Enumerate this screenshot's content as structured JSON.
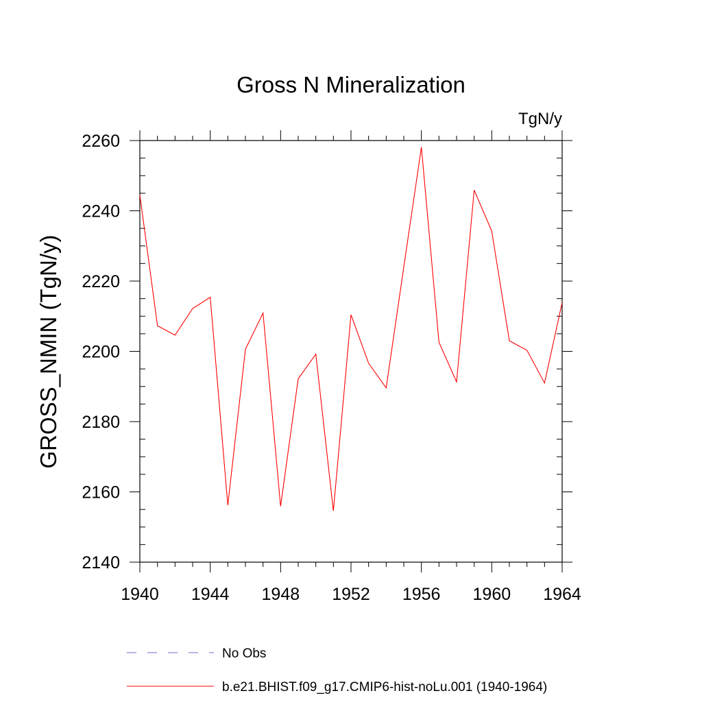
{
  "chart_data": {
    "type": "line",
    "title": "Gross N Mineralization",
    "units_label": "TgN/y",
    "ylabel": "GROSS_NMIN  (TgN/y)",
    "xlabel": "",
    "xlim": [
      1940,
      1964
    ],
    "ylim": [
      2140,
      2260
    ],
    "x_ticks": [
      1940,
      1944,
      1948,
      1952,
      1956,
      1960,
      1964
    ],
    "y_ticks": [
      2140,
      2160,
      2180,
      2200,
      2220,
      2240,
      2260
    ],
    "x_minor_step": 1,
    "y_minor_step": 5,
    "grid": false,
    "legend_position": "bottom",
    "x": [
      1940,
      1941,
      1942,
      1943,
      1944,
      1945,
      1946,
      1947,
      1948,
      1949,
      1950,
      1951,
      1952,
      1953,
      1954,
      1955,
      1956,
      1957,
      1958,
      1959,
      1960,
      1961,
      1962,
      1963,
      1964
    ],
    "series": [
      {
        "name": "b.e21.BHIST.f09_g17.CMIP6-hist-noLu.001 (1940-1964)",
        "color": "#ff0000",
        "style": "solid",
        "values": [
          2244.5,
          2207.3,
          2204.6,
          2212.2,
          2215.4,
          2156.2,
          2200.6,
          2210.9,
          2155.9,
          2192.2,
          2199.2,
          2154.6,
          2210.4,
          2196.6,
          2189.6,
          2224.0,
          2258.1,
          2202.6,
          2191.3,
          2245.9,
          2234.2,
          2203.0,
          2200.3,
          2191.0,
          2213.9
        ]
      }
    ],
    "legend": [
      {
        "label": "No Obs",
        "color": "#6a6acd",
        "style": "dashed"
      },
      {
        "label": "b.e21.BHIST.f09_g17.CMIP6-hist-noLu.001 (1940-1964)",
        "color": "#ff0000",
        "style": "solid"
      }
    ]
  }
}
